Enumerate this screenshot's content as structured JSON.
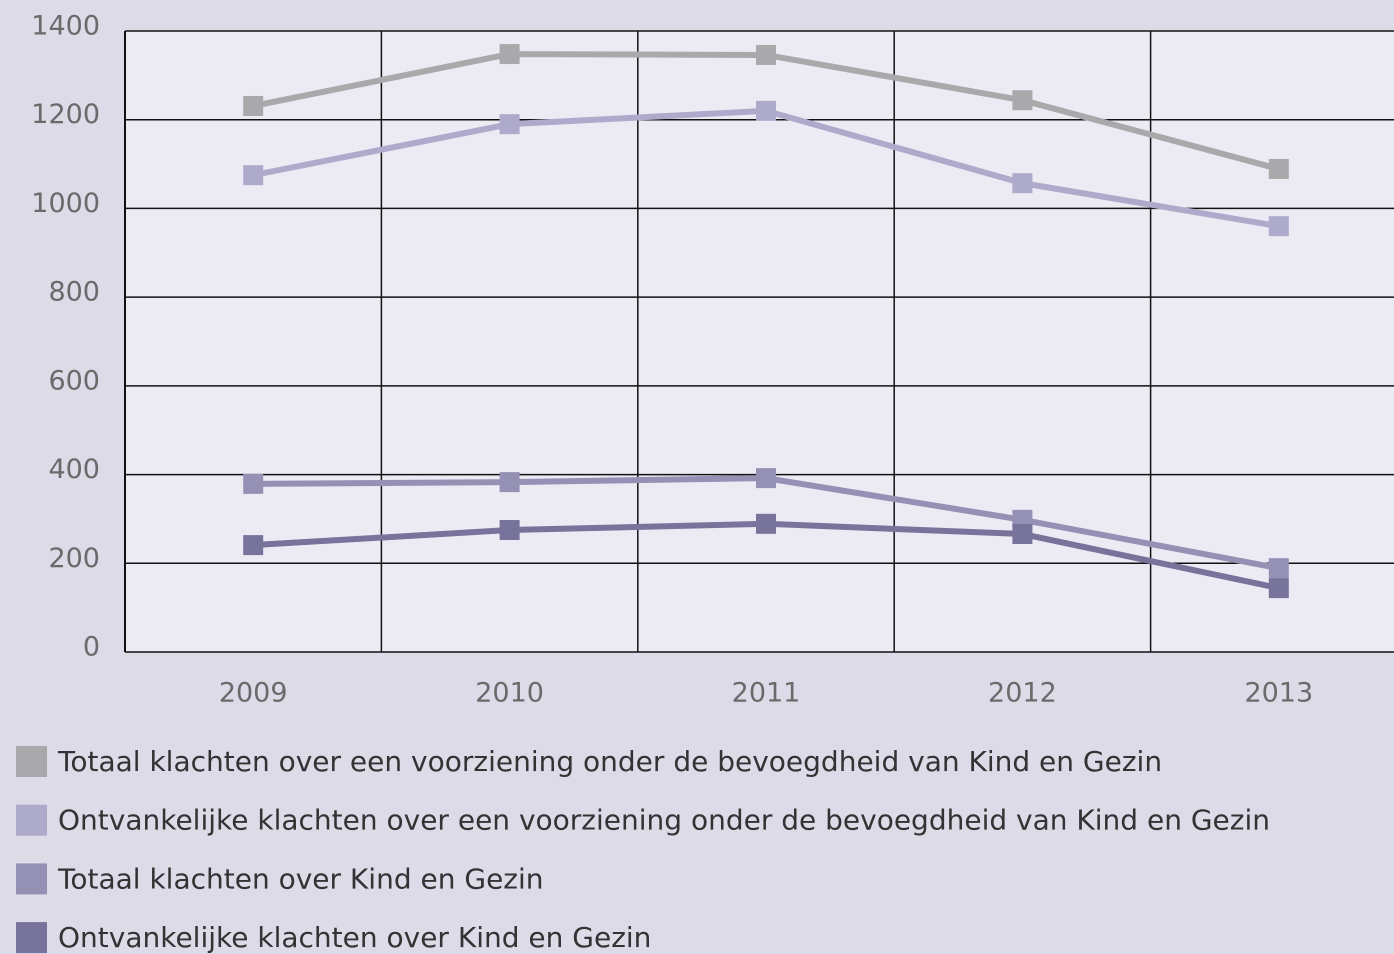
{
  "chart_data": {
    "type": "line",
    "categories": [
      "2009",
      "2010",
      "2011",
      "2012",
      "2013"
    ],
    "series": [
      {
        "name": "Totaal klachten over een voorziening onder de bevoegdheid van Kind en Gezin",
        "color": "#a9a9ac",
        "values": [
          1231,
          1348,
          1346,
          1244,
          1089
        ]
      },
      {
        "name": "Ontvankelijke klachten over een voorziening onder de bevoegdheid van Kind en Gezin",
        "color": "#aeaacb",
        "values": [
          1075,
          1190,
          1220,
          1057,
          960
        ]
      },
      {
        "name": "Totaal klachten over Kind en Gezin",
        "color": "#9591b5",
        "values": [
          379,
          383,
          392,
          298,
          189
        ]
      },
      {
        "name": "Ontvankelijke klachten over Kind en Gezin",
        "color": "#77739b",
        "values": [
          241,
          275,
          289,
          266,
          144
        ]
      }
    ],
    "ylim": [
      0,
      1400
    ],
    "yticks": [
      0,
      200,
      400,
      600,
      800,
      1000,
      1200,
      1400
    ],
    "grid": true
  }
}
